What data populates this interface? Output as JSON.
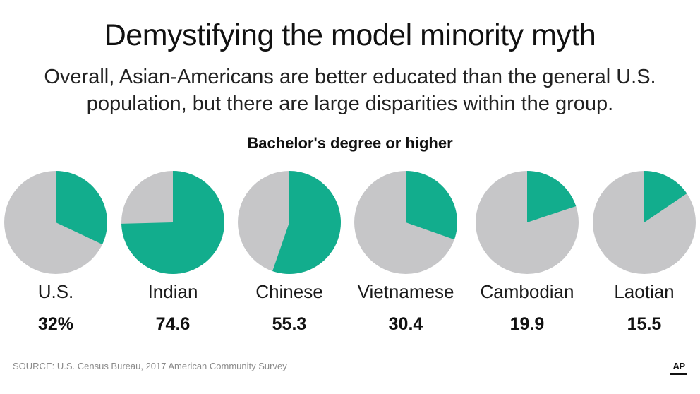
{
  "title": "Demystifying the model minority myth",
  "subtitle_lines": [
    "Overall, Asian-Americans are better educated than the general U.S.",
    "population, but there are large disparities within the group."
  ],
  "source": "SOURCE: U.S. Census Bureau, 2017 American Community Survey",
  "logo_text": "AP",
  "colors": {
    "filled": "#12ad8d",
    "remainder": "#c6c6c8",
    "text": "#111111",
    "source": "#8a8a8a"
  },
  "chart_data": {
    "type": "pie",
    "title": "Bachelor's degree or higher",
    "unit": "%",
    "categories": [
      "U.S.",
      "Indian",
      "Chinese",
      "Vietnamese",
      "Cambodian",
      "Laotian"
    ],
    "values": [
      32,
      74.6,
      55.3,
      30.4,
      19.9,
      15.5
    ],
    "value_labels": [
      "32%",
      "74.6",
      "55.3",
      "30.4",
      "19.9",
      "15.5"
    ],
    "start": "12 o'clock, clockwise"
  }
}
